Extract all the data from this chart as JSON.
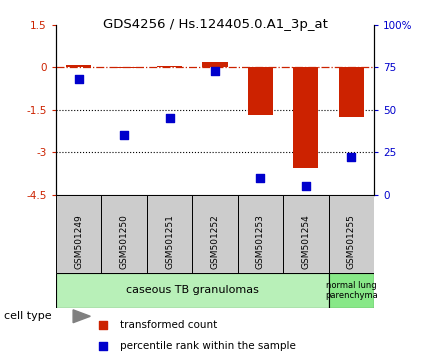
{
  "title": "GDS4256 / Hs.124405.0.A1_3p_at",
  "samples": [
    "GSM501249",
    "GSM501250",
    "GSM501251",
    "GSM501252",
    "GSM501253",
    "GSM501254",
    "GSM501255"
  ],
  "transformed_count": [
    0.07,
    -0.04,
    0.06,
    0.2,
    -1.7,
    -3.55,
    -1.75
  ],
  "percentile_rank": [
    68,
    35,
    45,
    73,
    10,
    5,
    22
  ],
  "red_color": "#cc2200",
  "blue_color": "#0000cc",
  "ylim_left": [
    -4.5,
    1.5
  ],
  "ylim_right": [
    0,
    100
  ],
  "dotted_lines": [
    -1.5,
    -3.0
  ],
  "group1_label": "caseous TB granulomas",
  "group2_label": "normal lung\nparenchyma",
  "group1_indices": [
    0,
    1,
    2,
    3,
    4,
    5
  ],
  "group2_indices": [
    6
  ],
  "cell_type_label": "cell type",
  "legend_red": "transformed count",
  "legend_blue": "percentile rank within the sample",
  "bar_width": 0.55,
  "marker_size": 6,
  "sample_box_color": "#cccccc",
  "group1_color": "#b8f0b8",
  "group2_color": "#88e888"
}
